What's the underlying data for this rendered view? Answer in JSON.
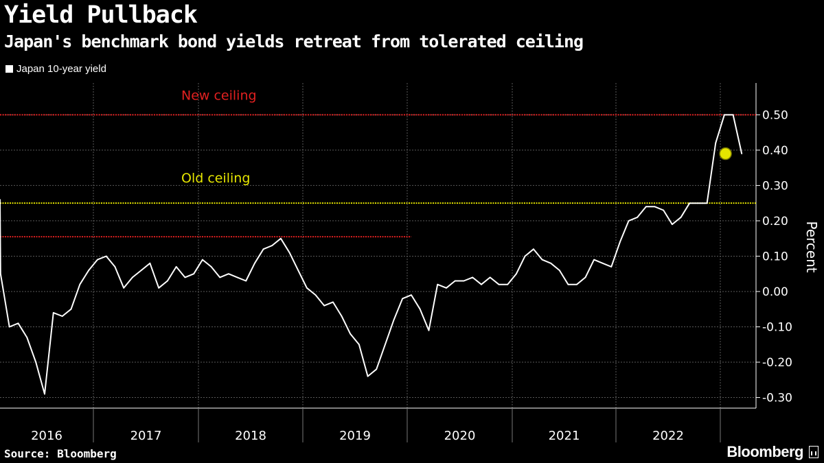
{
  "header": {
    "title": "Yield Pullback",
    "subtitle": "Japan's benchmark bond yields retreat from tolerated ceiling"
  },
  "legend": {
    "label": "Japan 10-year yield"
  },
  "footer": {
    "source": "Source: Bloomberg",
    "brand": "Bloomberg"
  },
  "colors": {
    "background": "#000000",
    "series": "#ffffff",
    "new_ceiling": "#e02020",
    "old_ceiling": "#e6e600",
    "grid": "#5a5a5a"
  },
  "chart_data": {
    "type": "line",
    "title": "Yield Pullback",
    "subtitle": "Japan's benchmark bond yields retreat from tolerated ceiling",
    "ylabel": "Percent",
    "ylim": [
      -0.33,
      0.59
    ],
    "y_axis_side": "right",
    "grid": true,
    "legend_position": "top-left",
    "year_labels": [
      "2016",
      "2017",
      "2018",
      "2019",
      "2020",
      "2021",
      "2022"
    ],
    "y_ticks": [
      {
        "value": 0.5,
        "label": "0.50"
      },
      {
        "value": 0.4,
        "label": "0.40"
      },
      {
        "value": 0.3,
        "label": "0.30"
      },
      {
        "value": 0.2,
        "label": "0.20"
      },
      {
        "value": 0.1,
        "label": "0.10"
      },
      {
        "value": 0.0,
        "label": "0.00"
      },
      {
        "value": -0.1,
        "label": "-0.10"
      },
      {
        "value": -0.2,
        "label": "-0.20"
      },
      {
        "value": -0.3,
        "label": "-0.30"
      }
    ],
    "reference_lines": [
      {
        "name": "New ceiling",
        "value": 0.5,
        "color": "#e02020"
      },
      {
        "name": "Old ceiling",
        "value": 0.25,
        "color": "#e6e600"
      },
      {
        "name": "",
        "value": 0.155,
        "color": "#e02020",
        "x_end": "2020-01"
      }
    ],
    "annotations": [
      {
        "text": "New ceiling",
        "color": "#e02020",
        "value": 0.5
      },
      {
        "text": "Old ceiling",
        "color": "#e6e600",
        "value": 0.25
      }
    ],
    "highlight_point": {
      "date": "2023-01-19",
      "value": 0.39
    },
    "series": [
      {
        "name": "Japan 10-year yield",
        "color": "#ffffff",
        "points": [
          [
            "2016-01",
            0.26
          ],
          [
            "2016-02",
            0.05
          ],
          [
            "2016-03",
            -0.1
          ],
          [
            "2016-04",
            -0.09
          ],
          [
            "2016-05",
            -0.13
          ],
          [
            "2016-06",
            -0.2
          ],
          [
            "2016-07",
            -0.29
          ],
          [
            "2016-08",
            -0.06
          ],
          [
            "2016-09",
            -0.07
          ],
          [
            "2016-10",
            -0.05
          ],
          [
            "2016-11",
            0.02
          ],
          [
            "2016-12",
            0.06
          ],
          [
            "2017-01",
            0.09
          ],
          [
            "2017-02",
            0.1
          ],
          [
            "2017-03",
            0.07
          ],
          [
            "2017-04",
            0.01
          ],
          [
            "2017-05",
            0.04
          ],
          [
            "2017-06",
            0.06
          ],
          [
            "2017-07",
            0.08
          ],
          [
            "2017-08",
            0.01
          ],
          [
            "2017-09",
            0.03
          ],
          [
            "2017-10",
            0.07
          ],
          [
            "2017-11",
            0.04
          ],
          [
            "2017-12",
            0.05
          ],
          [
            "2018-01",
            0.09
          ],
          [
            "2018-02",
            0.07
          ],
          [
            "2018-03",
            0.04
          ],
          [
            "2018-04",
            0.05
          ],
          [
            "2018-05",
            0.04
          ],
          [
            "2018-06",
            0.03
          ],
          [
            "2018-07",
            0.08
          ],
          [
            "2018-08",
            0.12
          ],
          [
            "2018-09",
            0.13
          ],
          [
            "2018-10",
            0.15
          ],
          [
            "2018-11",
            0.11
          ],
          [
            "2018-12",
            0.06
          ],
          [
            "2019-01",
            0.01
          ],
          [
            "2019-02",
            -0.01
          ],
          [
            "2019-03",
            -0.04
          ],
          [
            "2019-04",
            -0.03
          ],
          [
            "2019-05",
            -0.07
          ],
          [
            "2019-06",
            -0.12
          ],
          [
            "2019-07",
            -0.15
          ],
          [
            "2019-08",
            -0.24
          ],
          [
            "2019-09",
            -0.22
          ],
          [
            "2019-10",
            -0.15
          ],
          [
            "2019-11",
            -0.08
          ],
          [
            "2019-12",
            -0.02
          ],
          [
            "2020-01",
            -0.01
          ],
          [
            "2020-02",
            -0.05
          ],
          [
            "2020-03",
            -0.11
          ],
          [
            "2020-04",
            0.02
          ],
          [
            "2020-05",
            0.01
          ],
          [
            "2020-06",
            0.03
          ],
          [
            "2020-07",
            0.03
          ],
          [
            "2020-08",
            0.04
          ],
          [
            "2020-09",
            0.02
          ],
          [
            "2020-10",
            0.04
          ],
          [
            "2020-11",
            0.02
          ],
          [
            "2020-12",
            0.02
          ],
          [
            "2021-01",
            0.05
          ],
          [
            "2021-02",
            0.1
          ],
          [
            "2021-03",
            0.12
          ],
          [
            "2021-04",
            0.09
          ],
          [
            "2021-05",
            0.08
          ],
          [
            "2021-06",
            0.06
          ],
          [
            "2021-07",
            0.02
          ],
          [
            "2021-08",
            0.02
          ],
          [
            "2021-09",
            0.04
          ],
          [
            "2021-10",
            0.09
          ],
          [
            "2021-11",
            0.08
          ],
          [
            "2021-12",
            0.07
          ],
          [
            "2022-01",
            0.14
          ],
          [
            "2022-02",
            0.2
          ],
          [
            "2022-03",
            0.21
          ],
          [
            "2022-04",
            0.24
          ],
          [
            "2022-05",
            0.24
          ],
          [
            "2022-06",
            0.23
          ],
          [
            "2022-07",
            0.19
          ],
          [
            "2022-08",
            0.21
          ],
          [
            "2022-09",
            0.25
          ],
          [
            "2022-10",
            0.25
          ],
          [
            "2022-11",
            0.25
          ],
          [
            "2022-12",
            0.42
          ],
          [
            "2023-01",
            0.5
          ],
          [
            "2023-02",
            0.5
          ],
          [
            "2023-03",
            0.39
          ]
        ]
      }
    ]
  }
}
